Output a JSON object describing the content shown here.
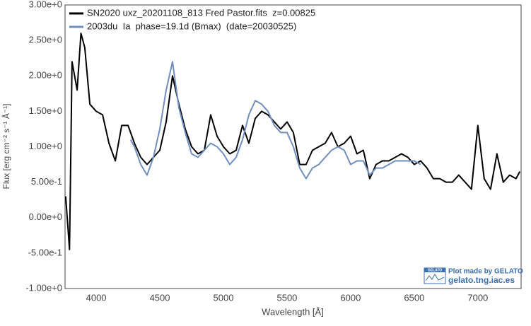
{
  "chart_data": {
    "type": "line",
    "xlabel": "Wavelength [Å]",
    "ylabel": "Flux [erg cm⁻² s⁻¹ Å⁻¹]",
    "x": [
      3760,
      3790,
      3810,
      3850,
      3880,
      3910,
      3950,
      4000,
      4050,
      4100,
      4150,
      4200,
      4250,
      4270,
      4300,
      4350,
      4400,
      4450,
      4500,
      4550,
      4600,
      4650,
      4700,
      4750,
      4800,
      4850,
      4900,
      4950,
      5000,
      5050,
      5100,
      5150,
      5200,
      5250,
      5300,
      5350,
      5400,
      5450,
      5500,
      5550,
      5600,
      5650,
      5700,
      5750,
      5800,
      5850,
      5900,
      5950,
      6000,
      6050,
      6100,
      6150,
      6200,
      6250,
      6300,
      6350,
      6400,
      6450,
      6500,
      6550,
      6600,
      6650,
      6700,
      6750,
      6800,
      6850,
      6900,
      6950,
      7000,
      7050,
      7100,
      7150,
      7200,
      7250,
      7300,
      7330
    ],
    "series": [
      {
        "name": "SN2020 uxz_20201108_813 Fred Pastor.fits  z=0.00825",
        "color": "#000000",
        "values": [
          0.3,
          -0.45,
          2.2,
          1.8,
          2.6,
          2.4,
          1.6,
          1.5,
          1.45,
          1.05,
          0.8,
          1.3,
          1.3,
          1.2,
          1.05,
          0.85,
          0.75,
          0.85,
          0.95,
          1.35,
          2.0,
          1.6,
          1.25,
          1.0,
          0.9,
          0.95,
          1.45,
          1.15,
          1.0,
          0.9,
          0.95,
          1.3,
          1.05,
          1.4,
          1.5,
          1.45,
          1.35,
          1.25,
          1.35,
          1.2,
          0.75,
          0.75,
          0.95,
          1.0,
          1.05,
          1.2,
          1.0,
          1.05,
          1.15,
          0.9,
          0.95,
          0.55,
          0.75,
          0.8,
          0.8,
          0.85,
          0.9,
          0.85,
          0.75,
          0.8,
          0.7,
          0.55,
          0.55,
          0.5,
          0.5,
          0.6,
          0.5,
          0.4,
          1.3,
          0.55,
          0.4,
          0.9,
          0.5,
          0.6,
          0.55,
          0.65
        ]
      },
      {
        "name": "2003du  Ia  phase=19.1d (Bmax)  (date=20030525)",
        "color": "#6f8fbf",
        "values": [
          null,
          null,
          null,
          null,
          null,
          null,
          null,
          null,
          null,
          null,
          null,
          null,
          null,
          1.1,
          1.0,
          0.75,
          0.6,
          0.85,
          1.25,
          1.8,
          2.2,
          1.55,
          1.2,
          0.9,
          0.85,
          0.95,
          1.05,
          1.0,
          0.9,
          0.75,
          0.85,
          1.1,
          1.45,
          1.65,
          1.6,
          1.5,
          1.3,
          1.2,
          1.2,
          1.0,
          0.7,
          0.55,
          0.7,
          0.75,
          0.85,
          0.95,
          1.0,
          0.95,
          0.75,
          0.8,
          0.8,
          0.6,
          0.7,
          0.7,
          0.75,
          0.8,
          0.8,
          0.8,
          0.8,
          0.75,
          null,
          null,
          null,
          null,
          null,
          null,
          null,
          null,
          null,
          null,
          null,
          null,
          null,
          null,
          null,
          null
        ]
      }
    ],
    "xlim": [
      3755,
      7340
    ],
    "ylim": [
      -1,
      3
    ],
    "xticks": [
      4000,
      4500,
      5000,
      5500,
      6000,
      6500,
      7000
    ],
    "yticks": [
      {
        "value": -1,
        "label": "-1.00e+0"
      },
      {
        "value": -0.5,
        "label": "-5.00e-1"
      },
      {
        "value": 0,
        "label": "0.00e+0"
      },
      {
        "value": 0.5,
        "label": "5.00e-1"
      },
      {
        "value": 1,
        "label": "1.00e+0"
      },
      {
        "value": 1.5,
        "label": "1.50e+0"
      },
      {
        "value": 2,
        "label": "2.00e+0"
      },
      {
        "value": 2.5,
        "label": "2.50e+0"
      },
      {
        "value": 3,
        "label": "3.00e+0"
      }
    ],
    "legend": "upper left",
    "watermark": {
      "logo": "GELATO",
      "line1": "Plot made by GELATO",
      "line2": "gelato.tng.iac.es"
    }
  }
}
